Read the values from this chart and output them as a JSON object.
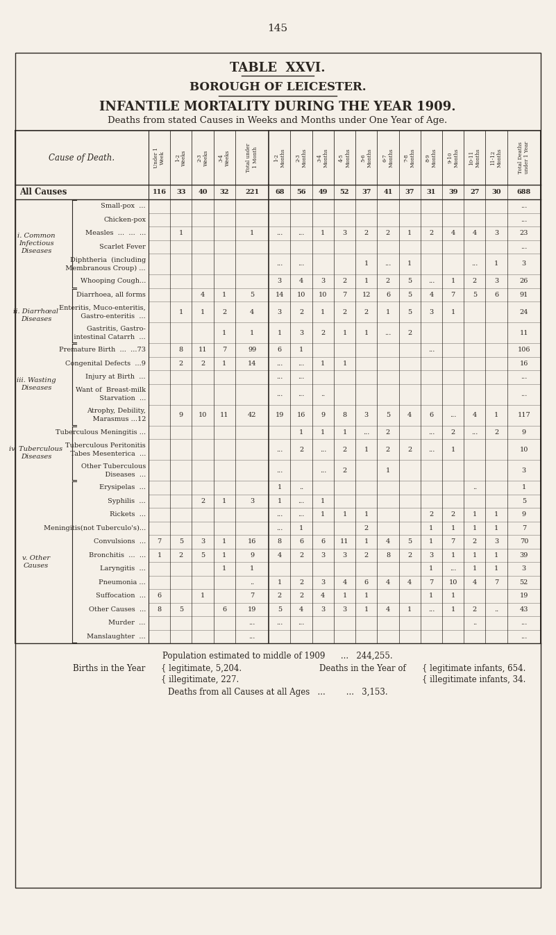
{
  "page_number": "145",
  "title1": "TABLE  XXVI.",
  "title2": "BOROUGH OF LEICESTER.",
  "title3": "INFANTILE MORTALITY DURING THE YEAR 1909.",
  "title4": "Deaths from stated Causes in Weeks and Months under One Year of Age.",
  "bg_color": "#F5F0E8",
  "text_color": "#2a2520",
  "col_headers": [
    "Under 1\nWeek",
    "1-2\nWeeks",
    "2-3\nWeeks",
    "3-4\nWeeks",
    "Total under\n1 Month",
    "1-2\nMonths",
    "2-3\nMonths",
    "3-4\nMonths",
    "4-5\nMonths",
    "5-6\nMonths",
    "6-7\nMonths",
    "7-8\nMonths",
    "8-9\nMonths",
    "9-10\nMonths",
    "10-11\nMonths",
    "11-12\nMonths",
    "Total Deaths\nunder 1 Year"
  ],
  "section_labels": [
    "i. Common\nInfectious\nDiseases",
    "ii. Diarrhœal\nDiseases",
    "iii. Wasting\nDiseases",
    "iv. Tuberculous\nDiseases",
    "v. Other\nCauses"
  ],
  "rows": [
    {
      "label": "All Causes",
      "bold": true,
      "section": -1,
      "two_line": false,
      "data": [
        "116",
        "33",
        "40",
        "32",
        "221",
        "68",
        "56",
        "49",
        "52",
        "37",
        "41",
        "37",
        "31",
        "39",
        "27",
        "30",
        "688"
      ]
    },
    {
      "label": "Small-pox  ...",
      "bold": false,
      "section": 0,
      "two_line": false,
      "data": [
        "",
        "",
        "",
        "",
        "",
        "",
        "",
        "",
        "",
        "",
        "",
        "",
        "",
        "",
        "",
        "",
        "..."
      ]
    },
    {
      "label": "Chicken-pox",
      "bold": false,
      "section": 0,
      "two_line": false,
      "data": [
        "",
        "",
        "",
        "",
        "",
        "",
        "",
        "",
        "",
        "",
        "",
        "",
        "",
        "",
        "",
        "",
        "..."
      ]
    },
    {
      "label": "Measles  ...  ...  ...",
      "bold": false,
      "section": 0,
      "two_line": false,
      "data": [
        "",
        "1",
        "",
        "",
        "1",
        "...",
        "...",
        "1",
        "3",
        "2",
        "2",
        "1",
        "2",
        "4",
        "4",
        "3",
        "23"
      ]
    },
    {
      "label": "Scarlet Fever",
      "bold": false,
      "section": 0,
      "two_line": false,
      "data": [
        "",
        "",
        "",
        "",
        "",
        "",
        "",
        "",
        "",
        "",
        "",
        "",
        "",
        "",
        "",
        "",
        "..."
      ]
    },
    {
      "label": "Diphtheria  (including",
      "bold": false,
      "section": 0,
      "two_line": true,
      "line2": "  Membranous Croup) ...",
      "data": [
        "",
        "",
        "",
        "",
        "",
        "...",
        "...",
        "",
        "",
        "1",
        "...",
        "1",
        "",
        "",
        "...",
        "1",
        "3"
      ]
    },
    {
      "label": "Whooping Cough...",
      "bold": false,
      "section": 0,
      "two_line": false,
      "data": [
        "",
        "",
        "",
        "",
        "",
        "3",
        "4",
        "3",
        "2",
        "1",
        "2",
        "5",
        "...",
        "1",
        "2",
        "3",
        "26"
      ]
    },
    {
      "label": "Diarrhoea, all forms",
      "bold": false,
      "section": 1,
      "two_line": false,
      "data": [
        "",
        "",
        "4",
        "1",
        "5",
        "14",
        "10",
        "10",
        "7",
        "12",
        "6",
        "5",
        "4",
        "7",
        "5",
        "6",
        "91"
      ]
    },
    {
      "label": "Enteritis, Muco-enteritis,",
      "bold": false,
      "section": 1,
      "two_line": true,
      "line2": "   Gastro-enteritis  ...",
      "data": [
        "",
        "1",
        "1",
        "2",
        "4",
        "3",
        "2",
        "1",
        "2",
        "2",
        "1",
        "5",
        "3",
        "1",
        "",
        "",
        "24"
      ]
    },
    {
      "label": "Gastritis, Gastro-",
      "bold": false,
      "section": 1,
      "two_line": true,
      "line2": "   intestinal Catarrh  ...",
      "data": [
        "",
        "",
        "",
        "1",
        "1",
        "1",
        "3",
        "2",
        "1",
        "1",
        "...",
        "2",
        "",
        "",
        "",
        "",
        "11"
      ]
    },
    {
      "label": "Premature Birth  ...  ...73",
      "bold": false,
      "section": 2,
      "two_line": false,
      "data": [
        "",
        "8",
        "11",
        "7",
        "99",
        "6",
        "1",
        "",
        "",
        "",
        "",
        "",
        "...",
        "",
        "",
        "",
        "106"
      ]
    },
    {
      "label": "Congenital Defects  ...9",
      "bold": false,
      "section": 2,
      "two_line": false,
      "data": [
        "",
        "2",
        "2",
        "1",
        "14",
        "...",
        "...",
        "1",
        "1",
        "",
        "",
        "",
        "",
        "",
        "",
        "",
        "16"
      ]
    },
    {
      "label": "Injury at Birth  ...",
      "bold": false,
      "section": 2,
      "two_line": false,
      "data": [
        "",
        "",
        "",
        "",
        "",
        "...",
        "...",
        "",
        "",
        "",
        "",
        "",
        "",
        "",
        "",
        "",
        "..."
      ]
    },
    {
      "label": "Want of  Breast-milk",
      "bold": false,
      "section": 2,
      "two_line": true,
      "line2": "          Starvation  ...",
      "data": [
        "",
        "",
        "",
        "",
        "",
        "...",
        "...",
        "..",
        "",
        "",
        "",
        "",
        "",
        "",
        "",
        "",
        "..."
      ]
    },
    {
      "label": "Atrophy, Debility,",
      "bold": false,
      "section": 2,
      "two_line": true,
      "line2": "            Marasmus ...12",
      "data": [
        "",
        "9",
        "10",
        "11",
        "42",
        "19",
        "16",
        "9",
        "8",
        "3",
        "5",
        "4",
        "6",
        "...",
        "4",
        "1",
        "117"
      ]
    },
    {
      "label": "Tuberculous Meningitis ...",
      "bold": false,
      "section": 3,
      "two_line": false,
      "data": [
        "",
        "",
        "",
        "",
        "",
        "",
        "1",
        "1",
        "1",
        "...",
        "2",
        "",
        "...",
        "2",
        "...",
        "2",
        "9"
      ]
    },
    {
      "label": "Tuberculous Peritonitis",
      "bold": false,
      "section": 3,
      "two_line": true,
      "line2": "   Tabes Mesenterica  ...",
      "data": [
        "",
        "",
        "",
        "",
        "",
        "...",
        "2",
        "...",
        "2",
        "1",
        "2",
        "2",
        "...",
        "1",
        "",
        "",
        "10"
      ]
    },
    {
      "label": "Other Tuberculous",
      "bold": false,
      "section": 3,
      "two_line": true,
      "line2": "   Diseases  ...",
      "data": [
        "",
        "",
        "",
        "",
        "",
        "...",
        "",
        "...",
        "2",
        "",
        "1",
        "",
        "",
        "",
        "",
        "",
        "3"
      ]
    },
    {
      "label": "Erysipelas  ...",
      "bold": false,
      "section": 4,
      "two_line": false,
      "data": [
        "",
        "",
        "",
        "",
        "",
        "1",
        "..",
        "",
        "",
        "",
        "",
        "",
        "",
        "",
        "..",
        "",
        "1"
      ]
    },
    {
      "label": "Syphilis  ...",
      "bold": false,
      "section": 4,
      "two_line": false,
      "data": [
        "",
        "",
        "2",
        "1",
        "3",
        "1",
        "...",
        "1",
        "",
        "",
        "",
        "",
        "",
        "",
        "",
        "",
        "5"
      ]
    },
    {
      "label": "Rickets  ...",
      "bold": false,
      "section": 4,
      "two_line": false,
      "data": [
        "",
        "",
        "",
        "",
        "",
        "...",
        "...",
        "1",
        "1",
        "1",
        "",
        "",
        "2",
        "2",
        "1",
        "1",
        "9"
      ]
    },
    {
      "label": "Meningitis(not Tuberculo's)...",
      "bold": false,
      "section": 4,
      "two_line": false,
      "data": [
        "",
        "",
        "",
        "",
        "",
        "...",
        "1",
        "",
        "",
        "2",
        "",
        "",
        "1",
        "1",
        "1",
        "1",
        "7"
      ]
    },
    {
      "label": "Convulsions  ...",
      "bold": false,
      "section": 4,
      "two_line": false,
      "data": [
        "7",
        "5",
        "3",
        "1",
        "16",
        "8",
        "6",
        "6",
        "11",
        "1",
        "4",
        "5",
        "1",
        "7",
        "2",
        "3",
        "70"
      ]
    },
    {
      "label": "Bronchitis  ...  ...",
      "bold": false,
      "section": 4,
      "two_line": false,
      "data": [
        "1",
        "2",
        "5",
        "1",
        "9",
        "4",
        "2",
        "3",
        "3",
        "2",
        "8",
        "2",
        "3",
        "1",
        "1",
        "1",
        "39"
      ]
    },
    {
      "label": "Laryngitis  ...",
      "bold": false,
      "section": 4,
      "two_line": false,
      "data": [
        "",
        "",
        "",
        "1",
        "1",
        "",
        "",
        "",
        "",
        "",
        "",
        "",
        "1",
        "...",
        "1",
        "1",
        "3"
      ]
    },
    {
      "label": "Pneumonia ...",
      "bold": false,
      "section": 4,
      "two_line": false,
      "data": [
        "",
        "",
        "",
        "",
        "..",
        "1",
        "2",
        "3",
        "4",
        "6",
        "4",
        "4",
        "7",
        "10",
        "4",
        "7",
        "52"
      ]
    },
    {
      "label": "Suffocation  ...",
      "bold": false,
      "section": 4,
      "two_line": false,
      "data": [
        "6",
        "",
        "1",
        "",
        "7",
        "2",
        "2",
        "4",
        "1",
        "1",
        "",
        "",
        "1",
        "1",
        "",
        "",
        "19"
      ]
    },
    {
      "label": "Other Causes  ...",
      "bold": false,
      "section": 4,
      "two_line": false,
      "data": [
        "8",
        "5",
        "",
        "6",
        "19",
        "5",
        "4",
        "3",
        "3",
        "1",
        "4",
        "1",
        "...",
        "1",
        "2",
        "..",
        "43"
      ]
    },
    {
      "label": "Murder  ...",
      "bold": false,
      "section": 4,
      "two_line": false,
      "data": [
        "",
        "",
        "",
        "",
        "...",
        "...",
        "...",
        "",
        "",
        "",
        "",
        "",
        "",
        "",
        "..",
        "",
        "..."
      ]
    },
    {
      "label": "Manslaughter  ...",
      "bold": false,
      "section": 4,
      "two_line": false,
      "data": [
        "",
        "",
        "",
        "",
        "...",
        "",
        "",
        "",
        "",
        "",
        "",
        "",
        "",
        "",
        "",
        "",
        "..."
      ]
    }
  ]
}
